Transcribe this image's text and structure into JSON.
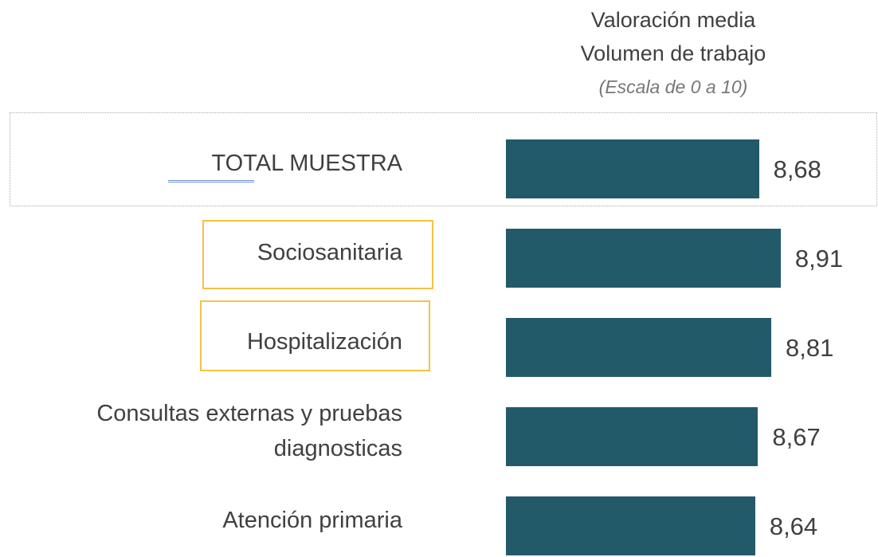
{
  "chart_data": {
    "type": "barh",
    "title": [
      "Valoración media",
      "Volumen de trabajo"
    ],
    "subtitle": "(Escala de 0 a 10)",
    "categories": [
      "TOTAL MUESTRA",
      "Sociosanitaria",
      "Hospitalización",
      "Consultas externas y pruebas diagnosticas",
      "Atención primaria"
    ],
    "values": [
      8.68,
      8.91,
      8.81,
      8.67,
      8.64
    ],
    "value_labels": [
      "8,68",
      "8,91",
      "8,81",
      "8,67",
      "8,64"
    ],
    "color": "#225a69",
    "xlim": [
      6,
      10
    ]
  }
}
